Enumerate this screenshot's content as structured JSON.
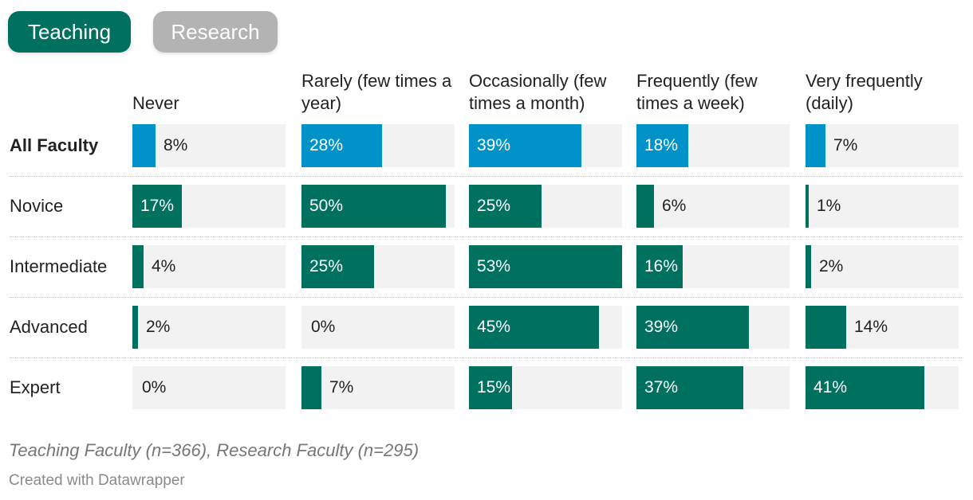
{
  "tabs": [
    {
      "label": "Teaching",
      "active": true
    },
    {
      "label": "Research",
      "active": false
    }
  ],
  "colors": {
    "highlight": "#0092c8",
    "bar": "#00705f",
    "background_bar": "#f2f2f2",
    "tab_active": "#00705f",
    "tab_inactive": "#b3b3b3"
  },
  "chart_data": {
    "type": "bar",
    "categories": [
      "All Faculty",
      "Novice",
      "Intermediate",
      "Advanced",
      "Expert"
    ],
    "columns": [
      "Never",
      "Rarely (few times a year)",
      "Occasionally (few times a month)",
      "Frequently (few times a week)",
      "Very frequently (daily)"
    ],
    "series": [
      {
        "name": "Never",
        "values": [
          8,
          17,
          4,
          2,
          0
        ],
        "labels": [
          "8%",
          "17%",
          "4%",
          "2%",
          "0%"
        ]
      },
      {
        "name": "Rarely (few times a year)",
        "values": [
          28,
          50,
          25,
          0,
          7
        ],
        "labels": [
          "28%",
          "50%",
          "25%",
          "0%",
          "7%"
        ]
      },
      {
        "name": "Occasionally (few times a month)",
        "values": [
          39,
          25,
          53,
          45,
          15
        ],
        "labels": [
          "39%",
          "25%",
          "53%",
          "45%",
          "15%"
        ]
      },
      {
        "name": "Frequently (few times a week)",
        "values": [
          18,
          6,
          16,
          39,
          37
        ],
        "labels": [
          "18%",
          "6%",
          "16%",
          "39%",
          "37%"
        ]
      },
      {
        "name": "Very frequently (daily)",
        "values": [
          7,
          1,
          2,
          14,
          41
        ],
        "labels": [
          "7%",
          "1%",
          "2%",
          "14%",
          "41%"
        ]
      }
    ],
    "xlim": [
      0,
      53
    ],
    "highlight_row": "All Faculty"
  },
  "notes": "Teaching Faculty (n=366), Research Faculty (n=295)",
  "credit": "Created with Datawrapper"
}
